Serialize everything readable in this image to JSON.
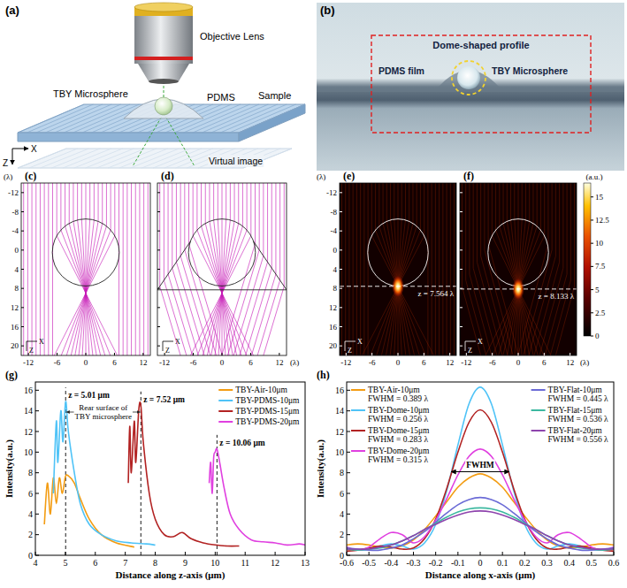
{
  "panel_a": {
    "label": "(a)",
    "objective": "Objective Lens",
    "microsphere": "TBY Microsphere",
    "pdms": "PDMS",
    "sample": "Sample",
    "virtual_image": "Virtual image",
    "axis_x": "X",
    "axis_z": "Z"
  },
  "panel_b": {
    "label": "(b)",
    "dome": "Dome-shaped profile",
    "film": "PDMS film",
    "microsphere": "TBY Microsphere"
  },
  "ray_panels": {
    "xlim": [
      -13.5,
      13.5
    ],
    "ylim": [
      -14,
      22
    ],
    "xticks": [
      -12,
      -6,
      0,
      6,
      12
    ],
    "yticks": [
      -12,
      -8,
      -4,
      0,
      4,
      8,
      12,
      16,
      20
    ],
    "unit": "(λ)",
    "axis_x": "X",
    "axis_z": "Z",
    "panels": [
      {
        "label": "(c)",
        "dome": false
      },
      {
        "label": "(d)",
        "dome": true
      }
    ]
  },
  "field_panels": {
    "xlim": [
      -13.5,
      13.5
    ],
    "ylim": [
      -14,
      22
    ],
    "xticks": [
      -12,
      -6,
      0,
      6,
      12
    ],
    "yticks": [
      -12,
      -8,
      -4,
      0,
      4,
      8,
      12,
      16,
      20
    ],
    "unit": "(λ)",
    "axis_x": "X",
    "axis_z": "Z",
    "panels": [
      {
        "label": "(e)",
        "focus_z": 7.564,
        "z_label": "z = 7.564 λ",
        "dome": false
      },
      {
        "label": "(f)",
        "focus_z": 8.133,
        "z_label": "z = 8.133 λ",
        "dome": true
      }
    ],
    "colorbar": {
      "label": "(a.u.)",
      "range": [
        0,
        16.5
      ],
      "ticks": [
        0,
        2.5,
        5,
        7.5,
        10,
        12.5,
        15
      ]
    }
  },
  "chart_data": [
    {
      "type": "line",
      "panel_label": "(g)",
      "x_label": "Distance along z-axis (μm)",
      "y_label": "Intensity(a.u.)",
      "xlim": [
        4,
        13
      ],
      "ylim": [
        0,
        16.8
      ],
      "xticks": [
        4,
        5,
        6,
        7,
        8,
        9,
        10,
        11,
        12,
        13
      ],
      "yticks": [
        0,
        2,
        4,
        6,
        8,
        10,
        12,
        14,
        16
      ],
      "legend": "upper right",
      "series": [
        {
          "name": "TBY-Air-10μm",
          "color": "#f39c12",
          "x": [
            4.3,
            4.4,
            4.5,
            4.6,
            4.7,
            4.8,
            4.9,
            5.0,
            5.1,
            5.3,
            5.5,
            5.8,
            6.2,
            6.7,
            7.3
          ],
          "values": [
            3.0,
            7.0,
            4.0,
            7.5,
            5.0,
            7.5,
            6.0,
            7.6,
            7.7,
            7.0,
            5.5,
            3.5,
            2.0,
            1.2,
            0.8
          ]
        },
        {
          "name": "TBY-PDMS-10μm",
          "color": "#4fc3f7",
          "x": [
            4.6,
            4.7,
            4.75,
            4.85,
            4.92,
            5.01,
            5.1,
            5.3,
            5.5,
            5.8,
            6.2,
            6.7,
            7.2,
            7.7,
            8.0
          ],
          "values": [
            6.0,
            13.0,
            9.0,
            14.0,
            11.0,
            14.9,
            12.0,
            8.0,
            5.0,
            3.0,
            2.0,
            1.4,
            1.2,
            1.1,
            1.0
          ]
        },
        {
          "name": "TBY-PDMS-15μm",
          "color": "#b22222",
          "x": [
            7.1,
            7.15,
            7.2,
            7.3,
            7.35,
            7.45,
            7.52,
            7.6,
            7.8,
            8.0,
            8.3,
            8.6,
            8.9,
            9.2,
            9.6,
            10.0,
            10.4,
            10.8
          ],
          "values": [
            7.0,
            12.5,
            8.0,
            13.0,
            9.0,
            14.1,
            14.5,
            11.0,
            6.0,
            3.5,
            2.0,
            1.8,
            2.2,
            1.6,
            1.2,
            1.0,
            0.9,
            0.9
          ]
        },
        {
          "name": "TBY-PDMS-20μm",
          "color": "#e040e0",
          "x": [
            9.8,
            9.85,
            9.9,
            9.95,
            10.0,
            10.06,
            10.15,
            10.3,
            10.5,
            10.8,
            11.2,
            11.6,
            12.0,
            12.4,
            12.8,
            13.0
          ],
          "values": [
            7.0,
            9.0,
            6.0,
            9.5,
            10.0,
            10.3,
            9.0,
            6.5,
            4.0,
            2.5,
            1.5,
            1.3,
            1.2,
            1.0,
            1.1,
            1.0
          ]
        }
      ],
      "annotations": [
        {
          "x": 5.01,
          "text": "z = 5.01 μm"
        },
        {
          "x": 7.52,
          "text": "z = 7.52 μm"
        },
        {
          "x": 10.06,
          "text": "z = 10.06 μm"
        }
      ],
      "rear_surface_label": "Rear surface of TBY microsphere"
    },
    {
      "type": "line",
      "panel_label": "(h)",
      "x_label": "Distance along x-axis (μm)",
      "y_label": "Intensity(a.u.)",
      "xlim": [
        -0.6,
        0.6
      ],
      "ylim": [
        0,
        16.8
      ],
      "xticks": [
        -0.6,
        -0.5,
        -0.4,
        -0.3,
        -0.2,
        -0.1,
        0,
        0.1,
        0.2,
        0.3,
        0.4,
        0.5,
        0.6
      ],
      "yticks": [
        0,
        2,
        4,
        6,
        8,
        10,
        12,
        14,
        16
      ],
      "legend": "top",
      "x": [
        -0.6,
        -0.55,
        -0.5,
        -0.45,
        -0.4,
        -0.35,
        -0.3,
        -0.25,
        -0.2,
        -0.15,
        -0.1,
        -0.05,
        0,
        0.05,
        0.1,
        0.15,
        0.2,
        0.25,
        0.3,
        0.35,
        0.4,
        0.45,
        0.5,
        0.55,
        0.6
      ],
      "series": [
        {
          "name": "TBY-Air-10μm",
          "fwhm_label": "FWHM = 0.389 λ",
          "color": "#f39c12",
          "values": [
            1.0,
            1.1,
            1.0,
            0.8,
            0.7,
            0.9,
            1.5,
            2.5,
            3.8,
            5.2,
            6.6,
            7.5,
            7.9,
            7.5,
            6.6,
            5.2,
            3.8,
            2.5,
            1.5,
            0.9,
            0.7,
            0.8,
            1.0,
            1.1,
            1.0
          ]
        },
        {
          "name": "TBY-Dome-10μm",
          "fwhm_label": "FWHM = 0.256 λ",
          "color": "#4fc3f7",
          "values": [
            0.7,
            0.5,
            0.6,
            0.9,
            1.1,
            0.9,
            0.6,
            1.2,
            3.0,
            6.3,
            10.7,
            14.7,
            16.3,
            14.7,
            10.7,
            6.3,
            3.0,
            1.2,
            0.6,
            0.9,
            1.1,
            0.9,
            0.6,
            0.5,
            0.7
          ]
        },
        {
          "name": "TBY-Dome-15μm",
          "fwhm_label": "FWHM = 0.283 λ",
          "color": "#b22222",
          "values": [
            0.4,
            0.5,
            0.7,
            0.9,
            0.8,
            0.6,
            0.7,
            1.6,
            3.5,
            6.5,
            10.0,
            12.9,
            14.1,
            12.9,
            10.0,
            6.5,
            3.5,
            1.6,
            0.7,
            0.6,
            0.8,
            0.9,
            0.7,
            0.5,
            0.4
          ]
        },
        {
          "name": "TBY-Dome-20μm",
          "fwhm_label": "FWHM = 0.315 λ",
          "color": "#e040e0",
          "values": [
            0.8,
            0.5,
            0.8,
            1.6,
            2.2,
            2.0,
            1.2,
            1.8,
            3.4,
            5.5,
            7.8,
            9.6,
            10.3,
            9.6,
            7.8,
            5.5,
            3.4,
            1.8,
            1.2,
            2.0,
            2.2,
            1.6,
            0.8,
            0.5,
            0.8
          ]
        },
        {
          "name": "TBY-Flat-10μm",
          "fwhm_label": "FWHM = 0.445 λ",
          "color": "#6b6bd6",
          "values": [
            0.7,
            0.6,
            0.5,
            0.5,
            0.7,
            1.0,
            1.6,
            2.3,
            3.2,
            4.1,
            4.9,
            5.4,
            5.6,
            5.4,
            4.9,
            4.1,
            3.2,
            2.3,
            1.6,
            1.0,
            0.7,
            0.5,
            0.5,
            0.6,
            0.7
          ]
        },
        {
          "name": "TBY-Flat-15μm",
          "fwhm_label": "FWHM = 0.536 λ",
          "color": "#3cb8a0",
          "values": [
            0.6,
            0.5,
            0.6,
            0.7,
            1.0,
            1.4,
            1.9,
            2.5,
            3.1,
            3.7,
            4.2,
            4.5,
            4.6,
            4.5,
            4.2,
            3.7,
            3.1,
            2.5,
            1.9,
            1.4,
            1.0,
            0.7,
            0.6,
            0.5,
            0.6
          ]
        },
        {
          "name": "TBY-Flat-20μm",
          "fwhm_label": "FWHM = 0.556 λ",
          "color": "#8e44ad",
          "values": [
            0.6,
            0.6,
            0.6,
            0.8,
            1.0,
            1.4,
            1.9,
            2.5,
            3.0,
            3.5,
            3.9,
            4.2,
            4.3,
            4.2,
            3.9,
            3.5,
            3.0,
            2.5,
            1.9,
            1.4,
            1.0,
            0.8,
            0.6,
            0.6,
            0.6
          ]
        }
      ],
      "fwhm_annotation": "FWHM"
    }
  ]
}
